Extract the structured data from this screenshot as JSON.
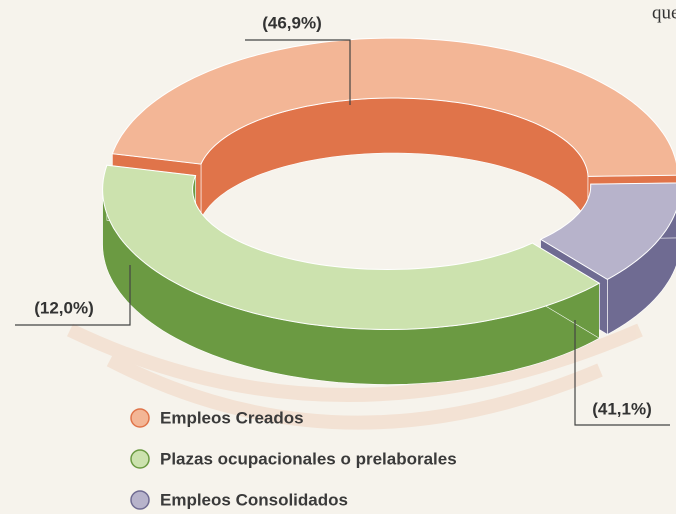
{
  "chart_data": {
    "type": "pie",
    "donut": true,
    "categories": [
      "Empleos Creados",
      "Empleos Consolidados",
      "Plazas ocupacionales o prelaborales"
    ],
    "values": [
      46.9,
      12.0,
      41.1
    ],
    "value_labels": [
      "(46,9%)",
      "(12,0%)",
      "(41,1%)"
    ],
    "colors": [
      "#f3b696",
      "#b7b3cb",
      "#cce2ae"
    ],
    "side_colors": [
      "#e0744a",
      "#6f6b92",
      "#6b9a42"
    ]
  },
  "page_text": "que"
}
